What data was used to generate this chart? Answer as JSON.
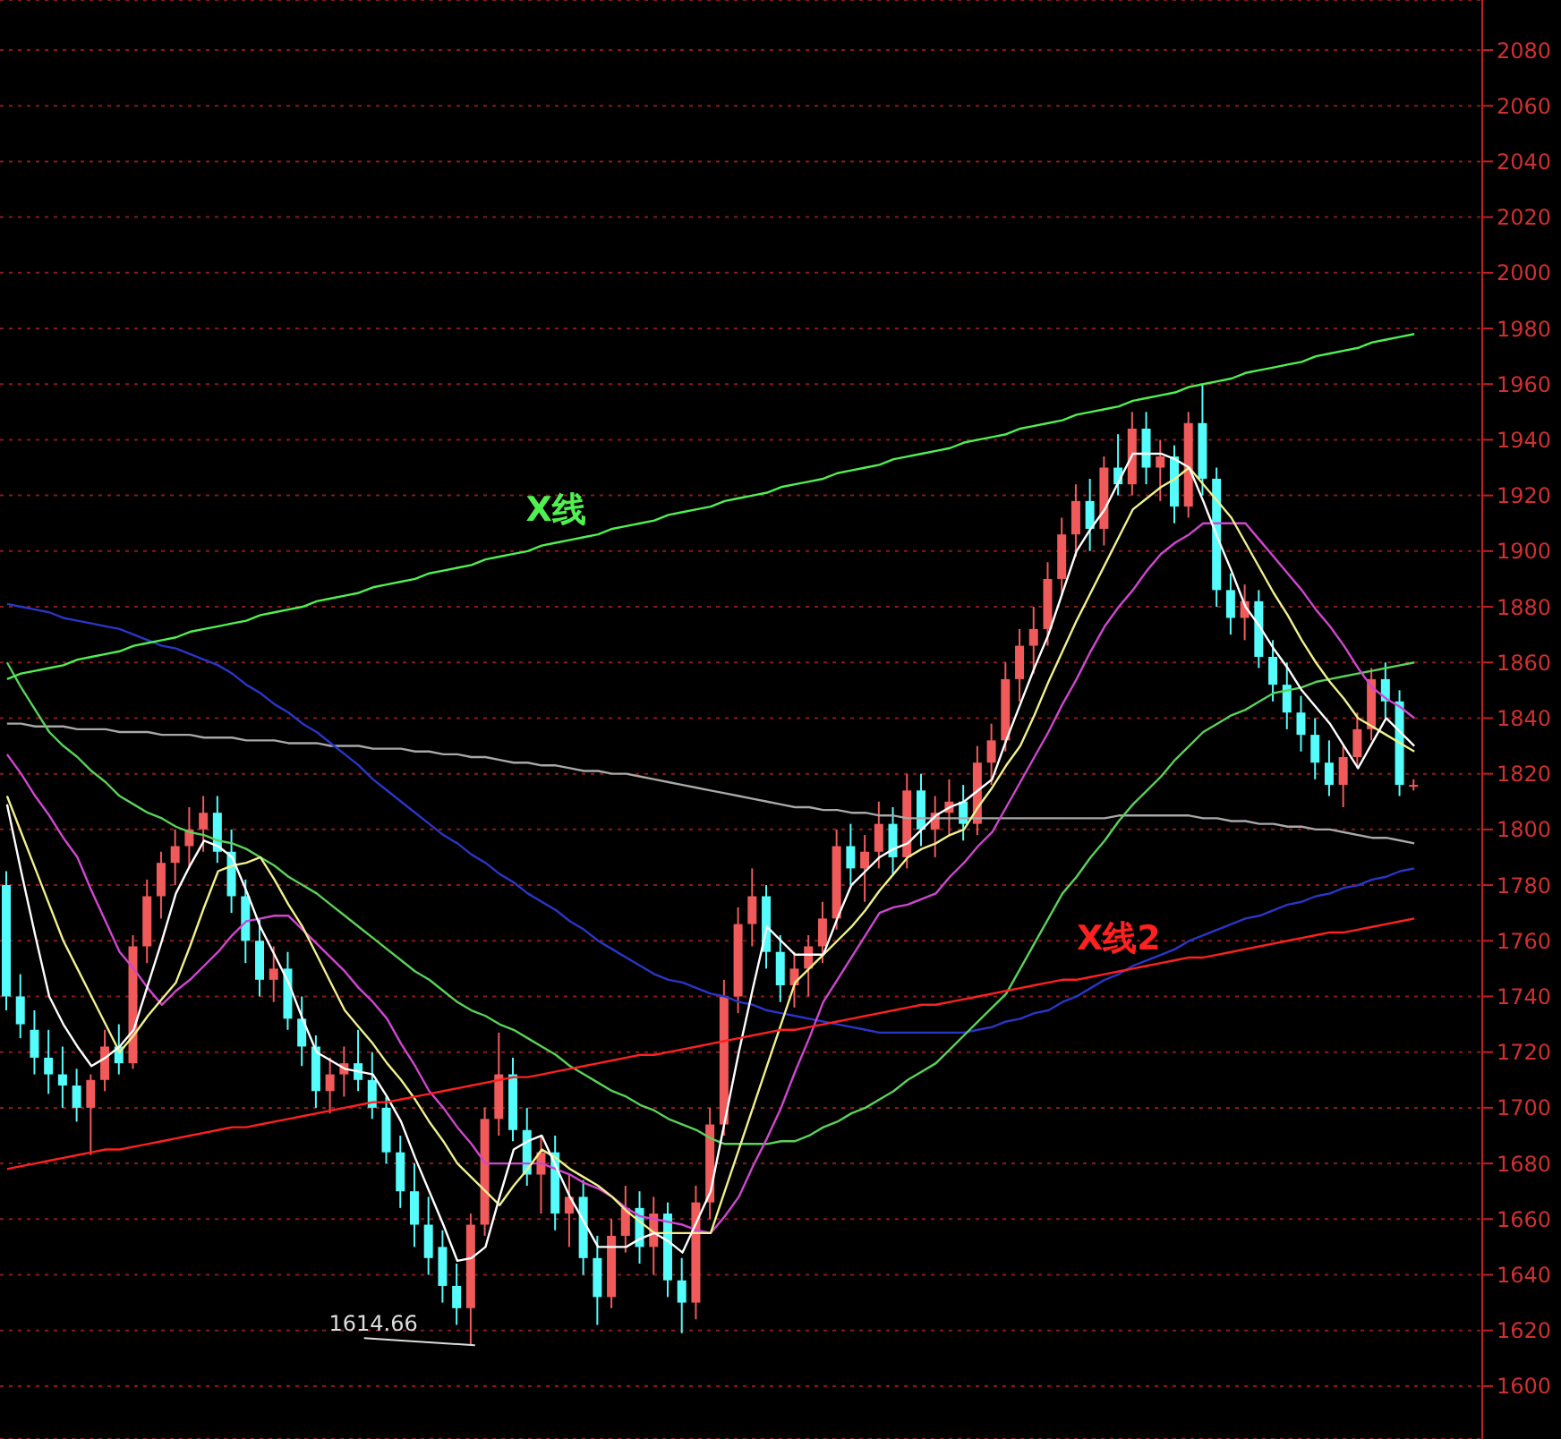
{
  "chart_data": {
    "type": "candlestick",
    "tick_labels": "y",
    "grid": "y",
    "legend": false,
    "ylim": [
      1581,
      2098
    ],
    "yticks": [
      1600,
      1620,
      1640,
      1660,
      1680,
      1700,
      1720,
      1740,
      1760,
      1780,
      1800,
      1820,
      1840,
      1860,
      1880,
      1900,
      1920,
      1940,
      1960,
      1980,
      2000,
      2020,
      2040,
      2060,
      2080
    ],
    "categories": [
      null,
      null,
      null,
      null,
      null,
      null,
      null,
      null,
      null,
      null,
      null,
      null,
      null,
      null,
      null,
      null,
      null,
      null,
      null,
      null,
      null,
      null,
      null,
      null,
      null,
      null,
      null,
      null,
      null,
      null,
      null,
      null,
      null,
      null,
      null,
      null,
      null,
      null,
      null,
      null,
      null,
      null,
      null,
      null,
      null,
      null,
      null,
      null,
      null,
      null,
      null,
      null,
      null,
      null,
      null,
      null,
      null,
      null,
      null,
      null,
      null,
      null,
      null,
      null,
      null,
      null,
      null,
      null,
      null,
      null,
      null,
      null,
      null,
      null,
      null,
      null,
      null,
      null,
      null,
      null,
      null,
      null,
      null,
      null,
      null,
      null,
      null,
      null,
      null,
      null,
      null,
      null,
      null,
      null,
      null,
      null,
      null,
      null,
      null,
      null,
      null
    ],
    "ohlc": [
      [
        1780,
        1785,
        1735,
        1740
      ],
      [
        1740,
        1748,
        1725,
        1730
      ],
      [
        1728,
        1735,
        1712,
        1718
      ],
      [
        1718,
        1728,
        1705,
        1712
      ],
      [
        1712,
        1722,
        1700,
        1708
      ],
      [
        1708,
        1714,
        1695,
        1700
      ],
      [
        1700,
        1712,
        1683,
        1710
      ],
      [
        1710,
        1728,
        1706,
        1722
      ],
      [
        1722,
        1730,
        1712,
        1716
      ],
      [
        1716,
        1762,
        1714,
        1758
      ],
      [
        1758,
        1782,
        1752,
        1776
      ],
      [
        1776,
        1792,
        1768,
        1788
      ],
      [
        1788,
        1800,
        1780,
        1794
      ],
      [
        1794,
        1808,
        1786,
        1800
      ],
      [
        1800,
        1812,
        1792,
        1806
      ],
      [
        1806,
        1812,
        1788,
        1792
      ],
      [
        1792,
        1800,
        1770,
        1776
      ],
      [
        1776,
        1782,
        1752,
        1760
      ],
      [
        1760,
        1768,
        1740,
        1746
      ],
      [
        1746,
        1758,
        1738,
        1750
      ],
      [
        1750,
        1756,
        1728,
        1732
      ],
      [
        1732,
        1740,
        1715,
        1722
      ],
      [
        1722,
        1726,
        1700,
        1706
      ],
      [
        1706,
        1718,
        1698,
        1712
      ],
      [
        1712,
        1722,
        1704,
        1716
      ],
      [
        1716,
        1728,
        1706,
        1710
      ],
      [
        1710,
        1720,
        1696,
        1700
      ],
      [
        1700,
        1704,
        1680,
        1684
      ],
      [
        1684,
        1690,
        1664,
        1670
      ],
      [
        1670,
        1680,
        1650,
        1658
      ],
      [
        1658,
        1668,
        1640,
        1646
      ],
      [
        1650,
        1656,
        1630,
        1636
      ],
      [
        1636,
        1644,
        1622,
        1628
      ],
      [
        1628,
        1662,
        1614.66,
        1658
      ],
      [
        1658,
        1700,
        1654,
        1696
      ],
      [
        1696,
        1727,
        1690,
        1712
      ],
      [
        1712,
        1718,
        1688,
        1692
      ],
      [
        1692,
        1700,
        1672,
        1676
      ],
      [
        1676,
        1690,
        1662,
        1684
      ],
      [
        1684,
        1690,
        1656,
        1662
      ],
      [
        1662,
        1676,
        1650,
        1668
      ],
      [
        1668,
        1674,
        1640,
        1646
      ],
      [
        1646,
        1654,
        1622,
        1632
      ],
      [
        1632,
        1660,
        1628,
        1654
      ],
      [
        1654,
        1672,
        1648,
        1664
      ],
      [
        1664,
        1670,
        1644,
        1650
      ],
      [
        1650,
        1668,
        1640,
        1662
      ],
      [
        1662,
        1666,
        1632,
        1638
      ],
      [
        1638,
        1646,
        1619,
        1630
      ],
      [
        1630,
        1672,
        1624,
        1666
      ],
      [
        1666,
        1700,
        1660,
        1694
      ],
      [
        1694,
        1746,
        1690,
        1740
      ],
      [
        1740,
        1772,
        1734,
        1766
      ],
      [
        1766,
        1786,
        1758,
        1776
      ],
      [
        1776,
        1780,
        1750,
        1756
      ],
      [
        1756,
        1762,
        1738,
        1744
      ],
      [
        1744,
        1756,
        1736,
        1750
      ],
      [
        1750,
        1762,
        1740,
        1758
      ],
      [
        1758,
        1774,
        1752,
        1768
      ],
      [
        1768,
        1800,
        1764,
        1794
      ],
      [
        1794,
        1802,
        1780,
        1786
      ],
      [
        1786,
        1798,
        1774,
        1792
      ],
      [
        1792,
        1810,
        1786,
        1802
      ],
      [
        1802,
        1808,
        1784,
        1790
      ],
      [
        1790,
        1820,
        1786,
        1814
      ],
      [
        1814,
        1820,
        1794,
        1800
      ],
      [
        1800,
        1812,
        1790,
        1806
      ],
      [
        1806,
        1818,
        1798,
        1810
      ],
      [
        1810,
        1816,
        1796,
        1802
      ],
      [
        1802,
        1830,
        1798,
        1824
      ],
      [
        1824,
        1838,
        1816,
        1832
      ],
      [
        1832,
        1860,
        1828,
        1854
      ],
      [
        1854,
        1872,
        1846,
        1866
      ],
      [
        1866,
        1880,
        1856,
        1872
      ],
      [
        1872,
        1896,
        1866,
        1890
      ],
      [
        1890,
        1912,
        1884,
        1906
      ],
      [
        1906,
        1924,
        1898,
        1918
      ],
      [
        1918,
        1926,
        1900,
        1908
      ],
      [
        1908,
        1934,
        1902,
        1930
      ],
      [
        1930,
        1942,
        1920,
        1924
      ],
      [
        1924,
        1950,
        1920,
        1944
      ],
      [
        1944,
        1950,
        1924,
        1930
      ],
      [
        1930,
        1940,
        1918,
        1934
      ],
      [
        1934,
        1938,
        1910,
        1916
      ],
      [
        1916,
        1950,
        1912,
        1946
      ],
      [
        1946,
        1960,
        1920,
        1926
      ],
      [
        1926,
        1930,
        1880,
        1886
      ],
      [
        1886,
        1892,
        1870,
        1876
      ],
      [
        1876,
        1888,
        1868,
        1882
      ],
      [
        1882,
        1886,
        1858,
        1862
      ],
      [
        1862,
        1868,
        1846,
        1852
      ],
      [
        1852,
        1860,
        1836,
        1842
      ],
      [
        1842,
        1848,
        1828,
        1834
      ],
      [
        1834,
        1840,
        1818,
        1824
      ],
      [
        1824,
        1832,
        1812,
        1816
      ],
      [
        1816,
        1830,
        1808,
        1826
      ],
      [
        1826,
        1842,
        1822,
        1836
      ],
      [
        1836,
        1858,
        1832,
        1854
      ],
      [
        1854,
        1860,
        1840,
        1846
      ],
      [
        1846,
        1850,
        1812,
        1816
      ],
      [
        1816,
        1818,
        1814,
        1816
      ]
    ],
    "colors": [
      "#54fcfc",
      "#54fcfc",
      "#54fcfc",
      "#54fcfc",
      "#54fcfc",
      "#54fcfc",
      "#f05a5a",
      "#f05a5a",
      "#54fcfc",
      "#f05a5a",
      "#f05a5a",
      "#f05a5a",
      "#f05a5a",
      "#f05a5a",
      "#f05a5a",
      "#54fcfc",
      "#54fcfc",
      "#54fcfc",
      "#54fcfc",
      "#f05a5a",
      "#54fcfc",
      "#54fcfc",
      "#54fcfc",
      "#f05a5a",
      "#f05a5a",
      "#54fcfc",
      "#54fcfc",
      "#54fcfc",
      "#54fcfc",
      "#54fcfc",
      "#54fcfc",
      "#54fcfc",
      "#54fcfc",
      "#f05a5a",
      "#f05a5a",
      "#f05a5a",
      "#54fcfc",
      "#54fcfc",
      "#f05a5a",
      "#54fcfc",
      "#f05a5a",
      "#54fcfc",
      "#54fcfc",
      "#f05a5a",
      "#f05a5a",
      "#54fcfc",
      "#f05a5a",
      "#54fcfc",
      "#54fcfc",
      "#f05a5a",
      "#f05a5a",
      "#f05a5a",
      "#f05a5a",
      "#f05a5a",
      "#54fcfc",
      "#54fcfc",
      "#f05a5a",
      "#f05a5a",
      "#f05a5a",
      "#f05a5a",
      "#54fcfc",
      "#f05a5a",
      "#f05a5a",
      "#54fcfc",
      "#f05a5a",
      "#54fcfc",
      "#f05a5a",
      "#f05a5a",
      "#54fcfc",
      "#f05a5a",
      "#f05a5a",
      "#f05a5a",
      "#f05a5a",
      "#f05a5a",
      "#f05a5a",
      "#f05a5a",
      "#f05a5a",
      "#54fcfc",
      "#f05a5a",
      "#54fcfc",
      "#f05a5a",
      "#54fcfc",
      "#f05a5a",
      "#54fcfc",
      "#f05a5a",
      "#54fcfc",
      "#54fcfc",
      "#54fcfc",
      "#f05a5a",
      "#54fcfc",
      "#54fcfc",
      "#54fcfc",
      "#54fcfc",
      "#54fcfc",
      "#54fcfc",
      "#f05a5a",
      "#f05a5a",
      "#f05a5a",
      "#54fcfc",
      "#54fcfc",
      "#f05a5a"
    ],
    "series": [
      {
        "type": "line",
        "color": "#a8a8a8",
        "values": [
          1838,
          1838,
          1837,
          1837,
          1837,
          1836,
          1836,
          1836,
          1835,
          1835,
          1835,
          1834,
          1834,
          1834,
          1833,
          1833,
          1833,
          1832,
          1832,
          1832,
          1831,
          1831,
          1831,
          1830,
          1830,
          1830,
          1829,
          1829,
          1829,
          1828,
          1828,
          1827,
          1827,
          1826,
          1826,
          1825,
          1824,
          1824,
          1823,
          1823,
          1822,
          1821,
          1821,
          1820,
          1820,
          1819,
          1818,
          1817,
          1816,
          1815,
          1814,
          1813,
          1812,
          1811,
          1810,
          1809,
          1808,
          1808,
          1807,
          1807,
          1806,
          1806,
          1805,
          1805,
          1804,
          1804,
          1804,
          1804,
          1804,
          1804,
          1804,
          1804,
          1804,
          1804,
          1804,
          1804,
          1804,
          1804,
          1804,
          1805,
          1805,
          1805,
          1805,
          1805,
          1805,
          1804,
          1804,
          1803,
          1803,
          1802,
          1802,
          1801,
          1801,
          1800,
          1800,
          1799,
          1798,
          1797,
          1797,
          1796,
          1795
        ]
      },
      {
        "type": "line",
        "color": "#2a36c8",
        "values": [
          1881,
          1880,
          1879,
          1878,
          1876,
          1875,
          1874,
          1873,
          1872,
          1870,
          1868,
          1866,
          1865,
          1863,
          1861,
          1859,
          1856,
          1852,
          1849,
          1845,
          1842,
          1838,
          1835,
          1831,
          1827,
          1823,
          1818,
          1814,
          1810,
          1806,
          1802,
          1798,
          1795,
          1791,
          1788,
          1784,
          1781,
          1777,
          1774,
          1771,
          1767,
          1764,
          1760,
          1757,
          1754,
          1751,
          1748,
          1746,
          1745,
          1743,
          1741,
          1740,
          1738,
          1737,
          1735,
          1734,
          1733,
          1732,
          1731,
          1730,
          1729,
          1728,
          1727,
          1727,
          1727,
          1727,
          1727,
          1727,
          1727,
          1728,
          1729,
          1731,
          1732,
          1734,
          1735,
          1738,
          1740,
          1743,
          1746,
          1748,
          1751,
          1753,
          1755,
          1757,
          1760,
          1762,
          1764,
          1766,
          1768,
          1769,
          1771,
          1773,
          1774,
          1776,
          1777,
          1779,
          1780,
          1782,
          1783,
          1785,
          1786
        ]
      },
      {
        "type": "line",
        "color": "#5ad25a",
        "values": [
          1860,
          1851,
          1843,
          1835,
          1830,
          1826,
          1821,
          1817,
          1812,
          1809,
          1806,
          1804,
          1801,
          1799,
          1798,
          1796,
          1795,
          1793,
          1790,
          1787,
          1783,
          1780,
          1777,
          1773,
          1769,
          1765,
          1761,
          1757,
          1753,
          1749,
          1746,
          1742,
          1738,
          1735,
          1733,
          1730,
          1728,
          1725,
          1722,
          1719,
          1715,
          1712,
          1709,
          1706,
          1704,
          1701,
          1699,
          1696,
          1694,
          1692,
          1689,
          1687,
          1687,
          1687,
          1687,
          1688,
          1688,
          1690,
          1693,
          1695,
          1698,
          1700,
          1703,
          1706,
          1710,
          1713,
          1716,
          1721,
          1726,
          1731,
          1736,
          1741,
          1750,
          1759,
          1768,
          1777,
          1783,
          1790,
          1796,
          1803,
          1809,
          1814,
          1819,
          1825,
          1830,
          1835,
          1838,
          1841,
          1843,
          1846,
          1849,
          1850,
          1851,
          1853,
          1854,
          1855,
          1856,
          1857,
          1858,
          1859,
          1860
        ]
      },
      {
        "type": "line",
        "color": "#d046d0",
        "values": [
          1827,
          1820,
          1812,
          1805,
          1797,
          1790,
          1778,
          1767,
          1756,
          1750,
          1743,
          1737,
          1742,
          1746,
          1751,
          1756,
          1762,
          1767,
          1768,
          1769,
          1769,
          1764,
          1759,
          1754,
          1749,
          1743,
          1738,
          1732,
          1723,
          1715,
          1706,
          1700,
          1693,
          1687,
          1680,
          1680,
          1680,
          1680,
          1680,
          1678,
          1676,
          1673,
          1671,
          1668,
          1664,
          1661,
          1660,
          1659,
          1658,
          1656,
          1655,
          1661,
          1668,
          1679,
          1689,
          1700,
          1713,
          1725,
          1738,
          1746,
          1754,
          1762,
          1770,
          1772,
          1773,
          1775,
          1777,
          1783,
          1788,
          1794,
          1799,
          1808,
          1817,
          1826,
          1835,
          1845,
          1854,
          1864,
          1873,
          1880,
          1886,
          1893,
          1899,
          1903,
          1906,
          1910,
          1910,
          1910,
          1910,
          1904,
          1898,
          1892,
          1886,
          1879,
          1873,
          1866,
          1858,
          1851,
          1847,
          1844,
          1840
        ]
      },
      {
        "type": "line",
        "color": "#f0f08c",
        "values": [
          1812,
          1799,
          1786,
          1773,
          1760,
          1750,
          1740,
          1730,
          1720,
          1726,
          1733,
          1739,
          1745,
          1758,
          1772,
          1785,
          1787,
          1788,
          1790,
          1782,
          1773,
          1765,
          1755,
          1745,
          1735,
          1729,
          1723,
          1716,
          1710,
          1703,
          1695,
          1688,
          1680,
          1675,
          1670,
          1665,
          1672,
          1678,
          1685,
          1682,
          1678,
          1675,
          1672,
          1668,
          1663,
          1659,
          1655,
          1655,
          1655,
          1655,
          1655,
          1670,
          1685,
          1700,
          1715,
          1730,
          1745,
          1750,
          1755,
          1760,
          1765,
          1771,
          1778,
          1784,
          1790,
          1793,
          1795,
          1798,
          1800,
          1808,
          1815,
          1823,
          1830,
          1841,
          1853,
          1864,
          1875,
          1885,
          1895,
          1905,
          1915,
          1919,
          1923,
          1926,
          1930,
          1924,
          1918,
          1912,
          1903,
          1894,
          1885,
          1877,
          1868,
          1860,
          1853,
          1847,
          1840,
          1837,
          1834,
          1831,
          1828
        ]
      },
      {
        "type": "line",
        "color": "#ffffff",
        "values": [
          1809,
          1785,
          1762,
          1740,
          1730,
          1722,
          1715,
          1718,
          1722,
          1728,
          1744,
          1760,
          1777,
          1787,
          1796,
          1794,
          1790,
          1778,
          1765,
          1755,
          1745,
          1732,
          1720,
          1717,
          1714,
          1713,
          1712,
          1704,
          1695,
          1682,
          1670,
          1658,
          1645,
          1646,
          1650,
          1668,
          1685,
          1688,
          1690,
          1679,
          1668,
          1659,
          1650,
          1650,
          1650,
          1653,
          1655,
          1652,
          1648,
          1659,
          1670,
          1695,
          1720,
          1743,
          1765,
          1760,
          1755,
          1755,
          1755,
          1768,
          1780,
          1785,
          1790,
          1793,
          1795,
          1800,
          1805,
          1808,
          1810,
          1814,
          1818,
          1832,
          1845,
          1858,
          1870,
          1885,
          1900,
          1908,
          1915,
          1925,
          1935,
          1935,
          1935,
          1933,
          1930,
          1918,
          1905,
          1893,
          1880,
          1873,
          1865,
          1858,
          1850,
          1844,
          1838,
          1830,
          1822,
          1831,
          1840,
          1835,
          1830
        ]
      },
      {
        "type": "line",
        "name": "X线",
        "color": "#50f050",
        "values": [
          1854,
          1856,
          1857,
          1858,
          1859,
          1861,
          1862,
          1863,
          1864,
          1866,
          1867,
          1868,
          1869,
          1871,
          1872,
          1873,
          1874,
          1875,
          1877,
          1878,
          1879,
          1880,
          1882,
          1883,
          1884,
          1885,
          1887,
          1888,
          1889,
          1890,
          1892,
          1893,
          1894,
          1895,
          1897,
          1898,
          1899,
          1900,
          1902,
          1903,
          1904,
          1905,
          1906,
          1908,
          1909,
          1910,
          1911,
          1913,
          1914,
          1915,
          1916,
          1918,
          1919,
          1920,
          1921,
          1923,
          1924,
          1925,
          1926,
          1928,
          1929,
          1930,
          1931,
          1933,
          1934,
          1935,
          1936,
          1937,
          1939,
          1940,
          1941,
          1942,
          1944,
          1945,
          1946,
          1947,
          1949,
          1950,
          1951,
          1952,
          1954,
          1955,
          1956,
          1957,
          1959,
          1960,
          1961,
          1962,
          1964,
          1965,
          1966,
          1967,
          1968,
          1970,
          1971,
          1972,
          1973,
          1975,
          1976,
          1977,
          1978
        ]
      },
      {
        "type": "line",
        "name": "X线2",
        "color": "#ff2020",
        "values": [
          1678,
          1679,
          1680,
          1681,
          1682,
          1683,
          1684,
          1685,
          1685,
          1686,
          1687,
          1688,
          1689,
          1690,
          1691,
          1692,
          1693,
          1693,
          1694,
          1695,
          1696,
          1697,
          1698,
          1699,
          1700,
          1701,
          1702,
          1702,
          1703,
          1704,
          1705,
          1706,
          1707,
          1708,
          1709,
          1710,
          1711,
          1711,
          1712,
          1713,
          1714,
          1715,
          1716,
          1717,
          1718,
          1719,
          1719,
          1720,
          1721,
          1722,
          1723,
          1724,
          1725,
          1726,
          1727,
          1728,
          1728,
          1729,
          1730,
          1731,
          1732,
          1733,
          1734,
          1735,
          1736,
          1737,
          1737,
          1738,
          1739,
          1740,
          1741,
          1742,
          1743,
          1744,
          1745,
          1746,
          1746,
          1747,
          1748,
          1749,
          1750,
          1751,
          1752,
          1753,
          1754,
          1754,
          1755,
          1756,
          1757,
          1758,
          1759,
          1760,
          1761,
          1762,
          1763,
          1763,
          1764,
          1765,
          1766,
          1767,
          1768
        ]
      }
    ],
    "annotations": [
      "1614.66"
    ]
  }
}
